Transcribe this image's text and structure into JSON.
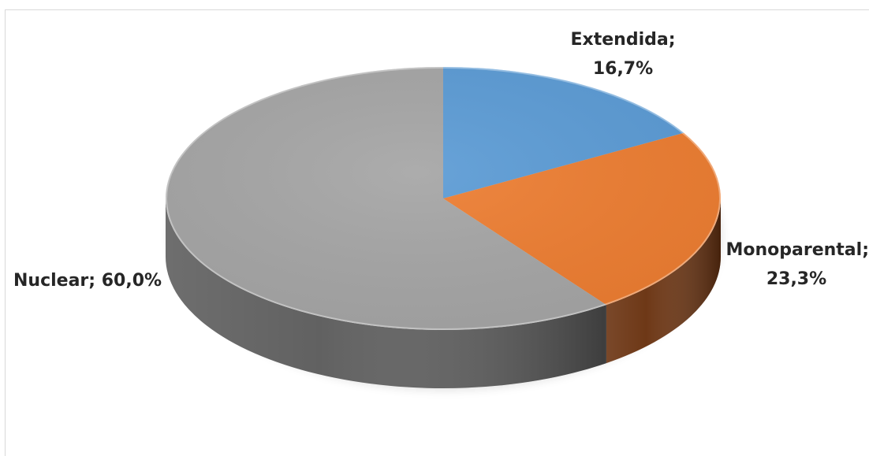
{
  "chart_data": {
    "type": "pie",
    "style": "3d",
    "slices": [
      {
        "name": "Extendida",
        "value": 16.7,
        "label_line1": "Extendida;",
        "label_line2": "16,7%",
        "color": "#5b9bd5",
        "side_color": "#2e5f8f"
      },
      {
        "name": "Monoparental",
        "value": 23.3,
        "label_line1": "Monoparental;",
        "label_line2": "23,3%",
        "color": "#ed7d31",
        "side_color": "#6b3412"
      },
      {
        "name": "Nuclear",
        "value": 60.0,
        "label_line1": "Nuclear; 60,0%",
        "label_line2": "",
        "color": "#a5a5a5",
        "side_color": "#5e5e5e"
      }
    ]
  }
}
